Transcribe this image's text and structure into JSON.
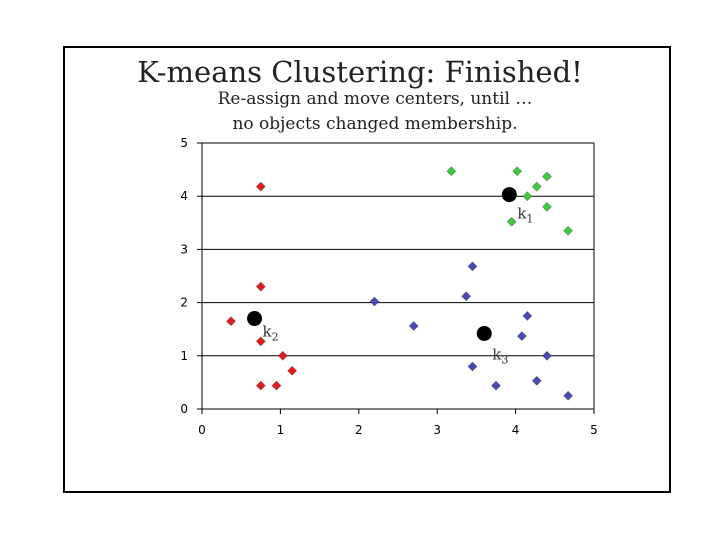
{
  "slide": {
    "title": "K-means Clustering: Finished!",
    "subtitle_line1": "Re-assign and move centers, until …",
    "subtitle_line2": "no objects changed membership."
  },
  "chart_data": {
    "type": "scatter",
    "title": "",
    "xlabel": "",
    "ylabel": "",
    "xlim": [
      0,
      5
    ],
    "ylim": [
      0,
      5
    ],
    "x_ticks": [
      "0",
      "1",
      "2",
      "3",
      "4",
      "5"
    ],
    "y_ticks": [
      "0",
      "1",
      "2",
      "3",
      "4",
      "5"
    ],
    "grid": "horizontal",
    "series": [
      {
        "color": "#dd1e1e",
        "marker": "diamond",
        "points": [
          [
            0.75,
            4.18
          ],
          [
            0.75,
            2.3
          ],
          [
            0.37,
            1.65
          ],
          [
            0.75,
            1.27
          ],
          [
            1.03,
            1.0
          ],
          [
            1.15,
            0.72
          ],
          [
            0.75,
            0.44
          ],
          [
            0.95,
            0.44
          ]
        ]
      },
      {
        "color": "#3ec93e",
        "marker": "diamond",
        "points": [
          [
            3.18,
            4.47
          ],
          [
            4.02,
            4.47
          ],
          [
            4.4,
            4.37
          ],
          [
            4.27,
            4.18
          ],
          [
            4.15,
            4.0
          ],
          [
            4.4,
            3.8
          ],
          [
            3.95,
            3.52
          ],
          [
            4.67,
            3.35
          ]
        ]
      },
      {
        "color": "#4a4ab5",
        "marker": "diamond",
        "points": [
          [
            2.2,
            2.02
          ],
          [
            3.45,
            2.68
          ],
          [
            3.37,
            2.12
          ],
          [
            2.7,
            1.56
          ],
          [
            4.15,
            1.75
          ],
          [
            4.08,
            1.37
          ],
          [
            4.4,
            1.0
          ],
          [
            3.45,
            0.8
          ],
          [
            3.75,
            0.44
          ],
          [
            4.27,
            0.53
          ],
          [
            4.67,
            0.25
          ]
        ]
      }
    ],
    "centers": [
      {
        "label": "k",
        "sub": "1",
        "x": 3.92,
        "y": 4.03
      },
      {
        "label": "k",
        "sub": "2",
        "x": 0.67,
        "y": 1.7
      },
      {
        "label": "k",
        "sub": "3",
        "x": 3.6,
        "y": 1.42
      }
    ]
  }
}
